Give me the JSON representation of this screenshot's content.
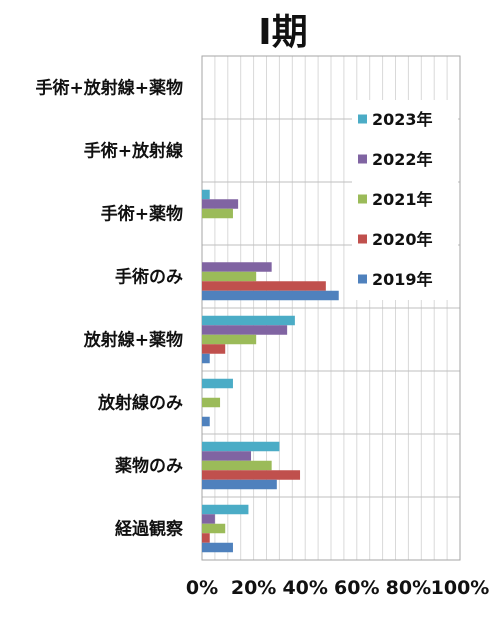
{
  "chart_data": {
    "type": "bar",
    "orientation": "horizontal",
    "title": "Ⅰ期",
    "categories": [
      "手術+放射線+薬物",
      "手術+放射線",
      "手術+薬物",
      "手術のみ",
      "放射線+薬物",
      "放射線のみ",
      "薬物のみ",
      "経過観察"
    ],
    "x_ticks": [
      "0%",
      "20%",
      "40%",
      "60%",
      "80%",
      "100%"
    ],
    "xlim": [
      0,
      100
    ],
    "grid": true,
    "legend_position": "top-right",
    "series": [
      {
        "name": "2023年",
        "color": "#4bacc6",
        "values": [
          0,
          0,
          3,
          0,
          36,
          12,
          30,
          18
        ]
      },
      {
        "name": "2022年",
        "color": "#8064a2",
        "values": [
          0,
          0,
          14,
          27,
          33,
          0,
          19,
          5
        ]
      },
      {
        "name": "2021年",
        "color": "#9bbb59",
        "values": [
          0,
          0,
          12,
          21,
          21,
          7,
          27,
          9
        ]
      },
      {
        "name": "2020年",
        "color": "#c0504d",
        "values": [
          0,
          0,
          0,
          48,
          9,
          0,
          38,
          3
        ]
      },
      {
        "name": "2019年",
        "color": "#4f81bd",
        "values": [
          0,
          0,
          0,
          53,
          3,
          3,
          29,
          12
        ]
      }
    ]
  }
}
